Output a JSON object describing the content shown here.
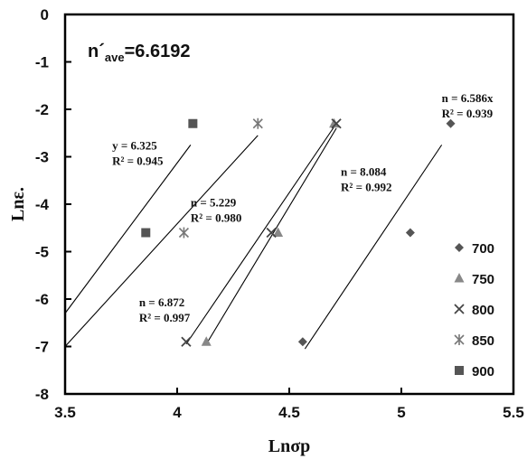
{
  "chart_data": {
    "type": "scatter",
    "xlabel": "Lnσp",
    "ylabel": "Lnε.",
    "xlim": [
      3.5,
      5.5
    ],
    "ylim": [
      -8,
      0
    ],
    "xticks": [
      "3.5",
      "4",
      "4.5",
      "5",
      "5.5"
    ],
    "yticks": [
      "0",
      "-1",
      "-2",
      "-3",
      "-4",
      "-5",
      "-6",
      "-7",
      "-8"
    ],
    "grid": false,
    "legend_position": "right",
    "big_label": {
      "main": "n´",
      "sub": "ave",
      "rest": "=6.6192"
    },
    "series": [
      {
        "name": "700",
        "marker": "diamond",
        "color": "#555555",
        "points": [
          [
            4.56,
            -6.9
          ],
          [
            5.04,
            -4.6
          ],
          [
            5.22,
            -2.3
          ]
        ],
        "fit": [
          [
            4.57,
            -7.05
          ],
          [
            5.18,
            -2.75
          ]
        ]
      },
      {
        "name": "750",
        "marker": "triangle",
        "color": "#888888",
        "points": [
          [
            4.13,
            -6.9
          ],
          [
            4.45,
            -4.6
          ],
          [
            4.7,
            -2.3
          ]
        ],
        "fit": [
          [
            4.13,
            -6.95
          ],
          [
            4.71,
            -2.4
          ]
        ]
      },
      {
        "name": "800",
        "marker": "x",
        "color": "#444444",
        "points": [
          [
            4.04,
            -6.9
          ],
          [
            4.42,
            -4.6
          ],
          [
            4.71,
            -2.3
          ]
        ],
        "fit": [
          [
            4.04,
            -6.95
          ],
          [
            4.71,
            -2.3
          ]
        ]
      },
      {
        "name": "850",
        "marker": "star",
        "color": "#777777",
        "points": [
          [
            4.03,
            -4.6
          ],
          [
            4.36,
            -2.3
          ]
        ],
        "fit": [
          [
            3.5,
            -7.0
          ],
          [
            4.36,
            -2.55
          ]
        ]
      },
      {
        "name": "900",
        "marker": "square",
        "color": "#555555",
        "points": [
          [
            3.86,
            -4.6
          ],
          [
            4.07,
            -2.3
          ]
        ],
        "fit": [
          [
            3.5,
            -6.3
          ],
          [
            4.06,
            -2.75
          ]
        ]
      }
    ],
    "annotations": [
      {
        "lines": [
          "n = 6.586x",
          "R² = 0.939"
        ],
        "x": 5.18,
        "y": -1.85
      },
      {
        "lines": [
          "y = 6.325",
          "R² = 0.945"
        ],
        "x": 3.71,
        "y": -2.85
      },
      {
        "lines": [
          "n = 5.229",
          "R² = 0.980"
        ],
        "x": 4.06,
        "y": -4.05
      },
      {
        "lines": [
          "n = 8.084",
          "R² = 0.992"
        ],
        "x": 4.73,
        "y": -3.4
      },
      {
        "lines": [
          "n = 6.872",
          "R² = 0.997"
        ],
        "x": 3.83,
        "y": -6.15
      }
    ]
  }
}
